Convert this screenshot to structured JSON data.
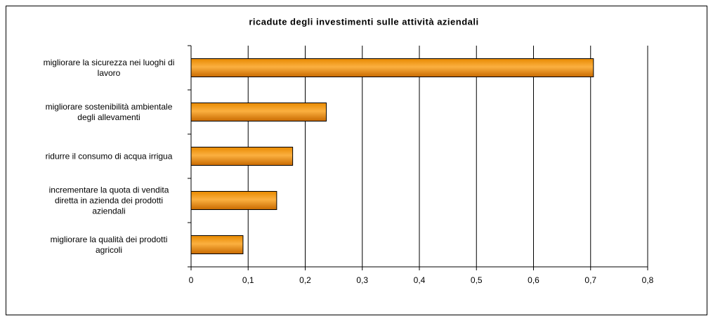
{
  "chart_data": {
    "type": "bar",
    "orientation": "horizontal",
    "title": "ricadute degli investimenti sulle attività aziendali",
    "categories": [
      "migliorare la  sicurezza nei luoghi di lavoro",
      "migliorare sostenibilità ambientale degli allevamenti",
      "ridurre il consumo di acqua irrigua",
      "incrementare la quota di vendita diretta in azienda dei prodotti aziendali",
      "migliorare la qualità dei prodotti agricoli"
    ],
    "values": [
      0.705,
      0.237,
      0.178,
      0.15,
      0.091
    ],
    "color": "#f39a12",
    "xlim": [
      0,
      0.8
    ],
    "xticks": [
      0,
      {
        "value": 0.1,
        "label": "0,1"
      },
      {
        "value": 0.2,
        "label": "0,2"
      },
      {
        "value": 0.3,
        "label": "0,3"
      },
      {
        "value": 0.4,
        "label": "0,4"
      },
      {
        "value": 0.5,
        "label": "0,5"
      },
      {
        "value": 0.6,
        "label": "0,6"
      },
      {
        "value": 0.7,
        "label": "0,7"
      },
      {
        "value": 0.8,
        "label": "0,8"
      }
    ],
    "grid": true
  }
}
